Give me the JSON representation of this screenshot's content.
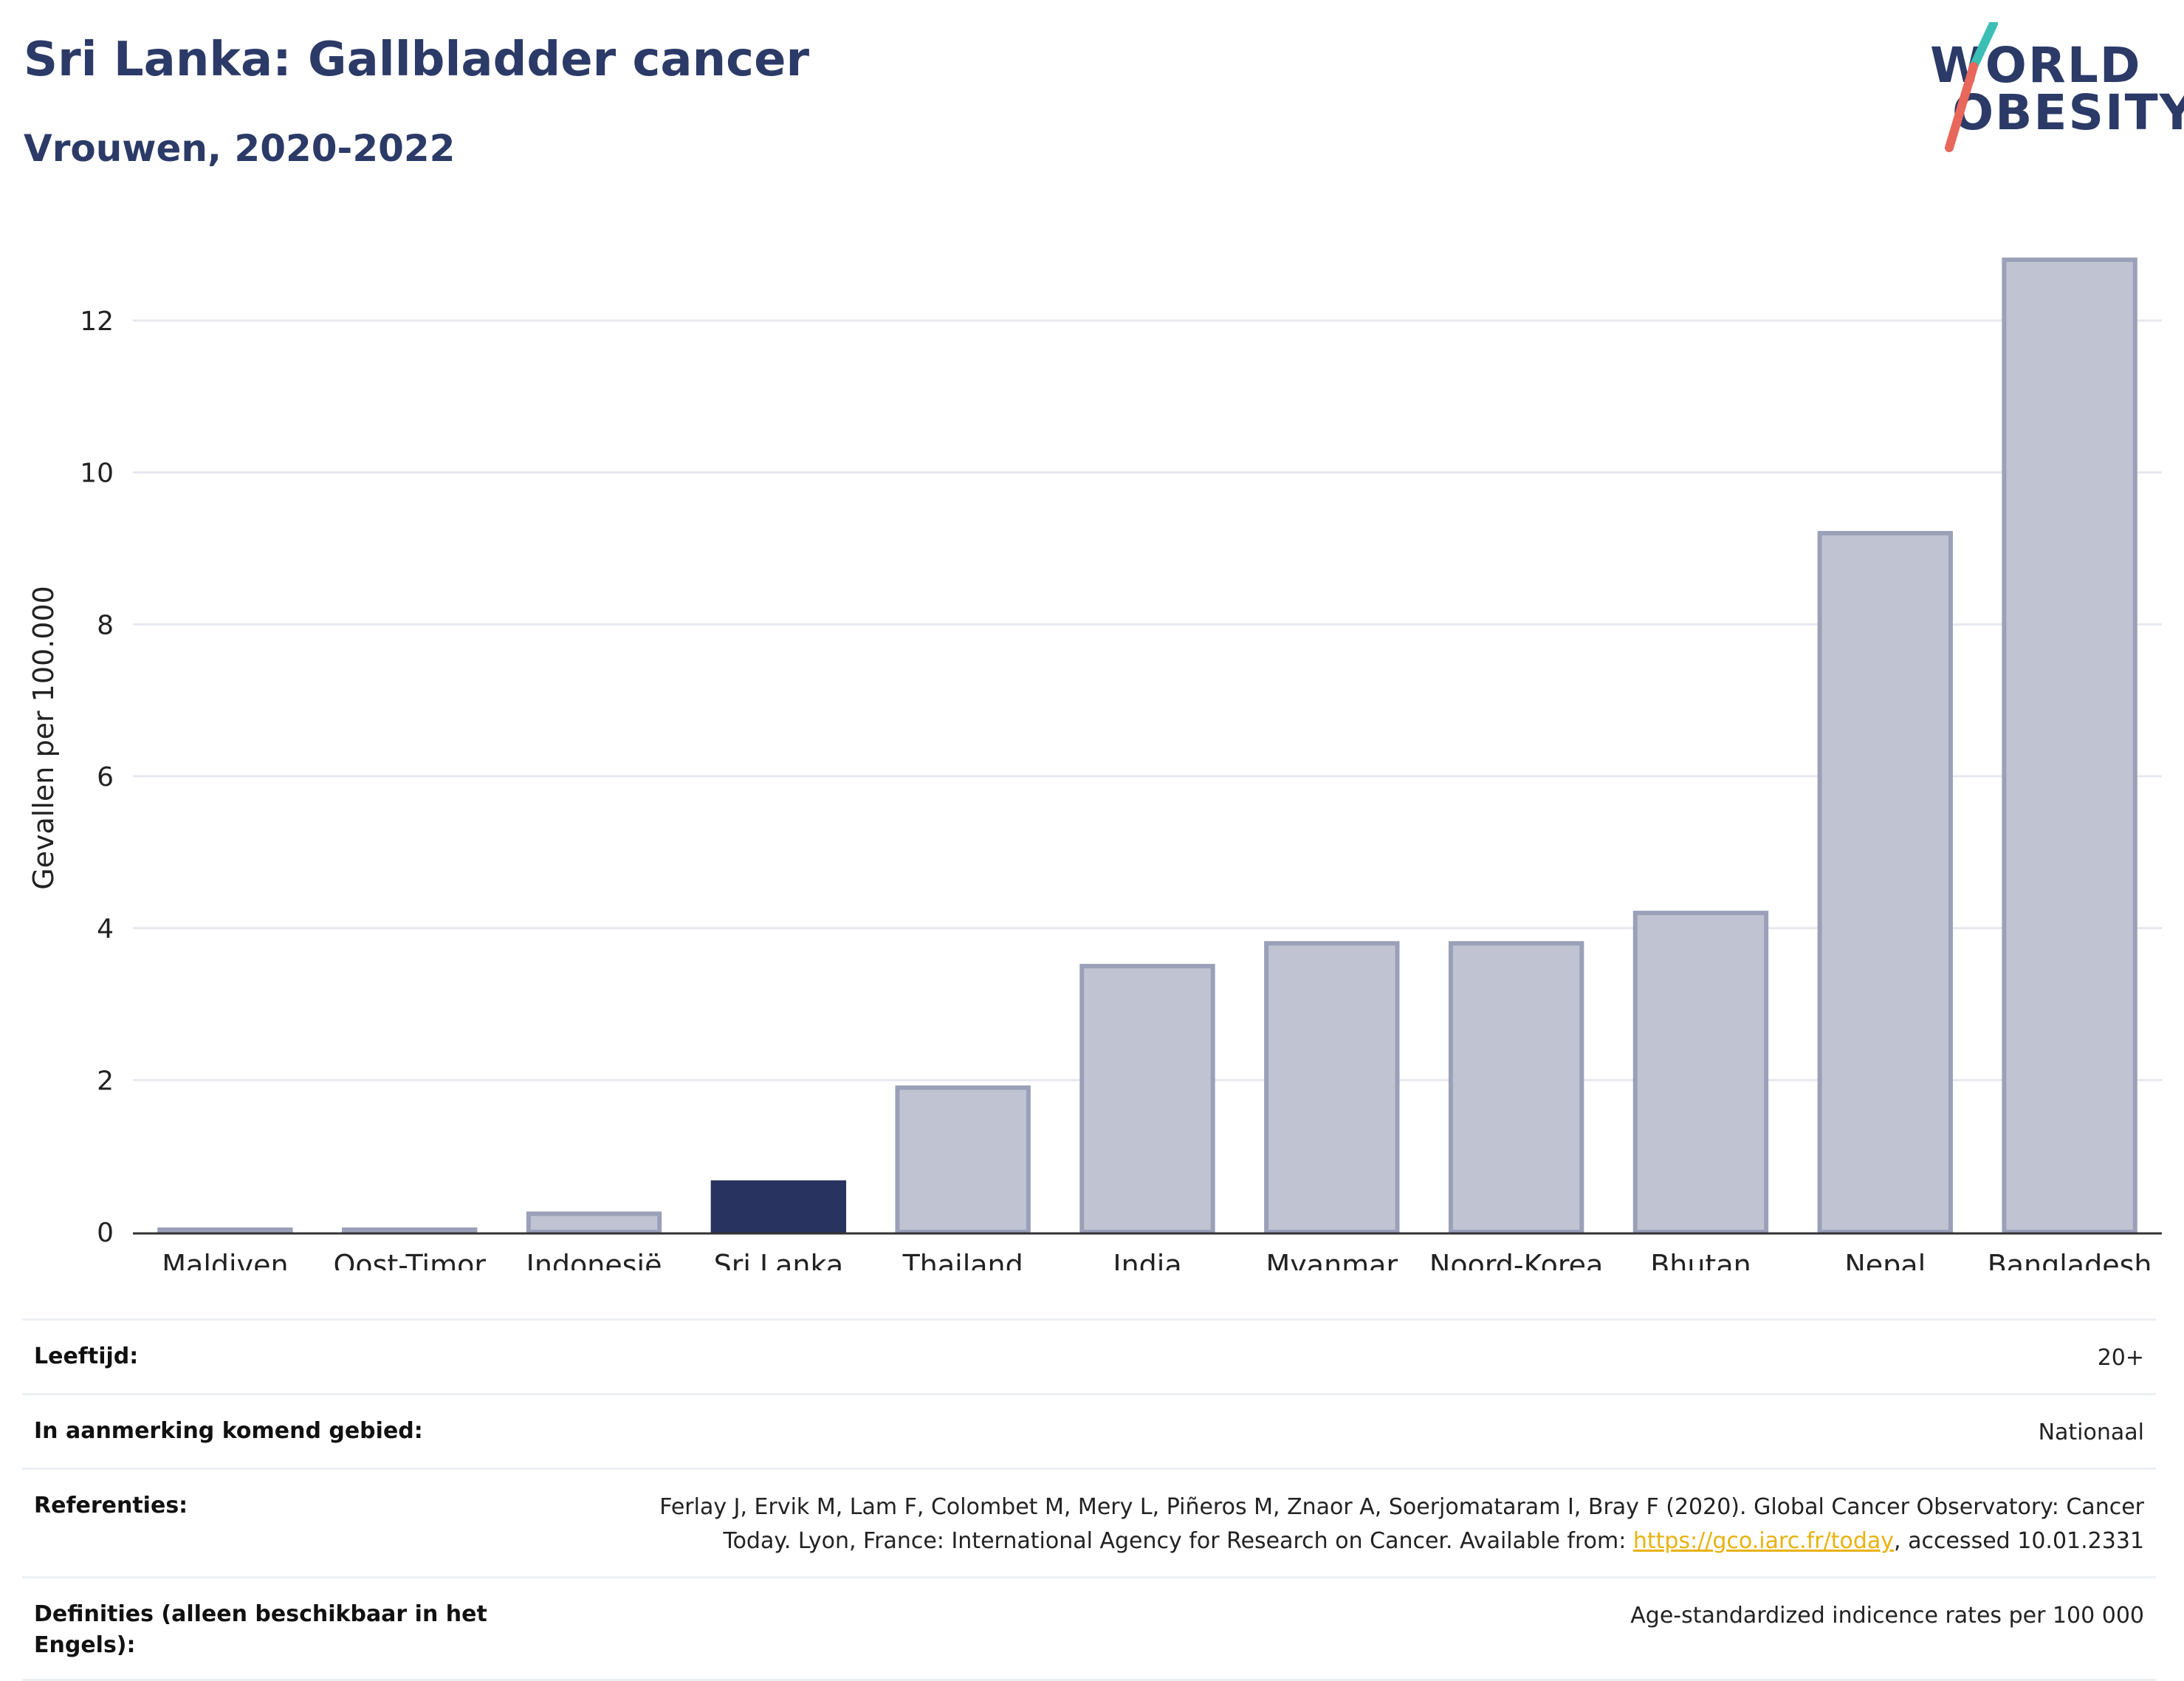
{
  "header": {
    "title": "Sri Lanka: Gallbladder cancer",
    "subtitle": "Vrouwen, 2020-2022"
  },
  "logo": {
    "line1": "WORLD",
    "line2": "OBESITY",
    "slash_color_top": "#3bbfb5",
    "slash_color_bottom": "#e8675a"
  },
  "colors": {
    "highlight_bar": "#28335f",
    "bar_fill": "#c0c4d2",
    "bar_stroke": "#9aa0b8",
    "text_dark": "#2b3a67"
  },
  "chart_data": {
    "type": "bar",
    "ylabel": "Gevallen per 100.000",
    "xlabel": "",
    "categories": [
      "Maldiven",
      "Oost-Timor",
      "Indonesië",
      "Sri Lanka",
      "Thailand",
      "India",
      "Myanmar",
      "Noord-Korea",
      "Bhutan",
      "Nepal",
      "Bangladesh"
    ],
    "values": [
      0.03,
      0.03,
      0.24,
      0.65,
      1.9,
      3.5,
      3.8,
      3.8,
      4.2,
      9.2,
      12.8
    ],
    "highlight": "Sri Lanka",
    "ylim": [
      0,
      13.4
    ],
    "yticks": [
      0,
      2,
      4,
      6,
      8,
      10,
      12
    ],
    "grid": true,
    "legend": "none"
  },
  "meta": {
    "age_label": "Leeftijd:",
    "age_value": "20+",
    "area_label": "In aanmerking komend gebied:",
    "area_value": "Nationaal",
    "ref_label": "Referenties:",
    "ref_text_1": "Ferlay J, Ervik M, Lam F, Colombet M, Mery L, Piñeros M, Znaor A, Soerjomataram I, Bray F (2020). Global Cancer Observatory: Cancer",
    "ref_text_2": "Today. Lyon, France: International Agency for Research on Cancer. Available from: ",
    "ref_link": "https://gco.iarc.fr/today",
    "ref_text_3": ", accessed 10.01.2331",
    "def_label": "Definities (alleen beschikbaar in het Engels):",
    "def_value": "Age-standardized indicence rates per 100 000"
  }
}
